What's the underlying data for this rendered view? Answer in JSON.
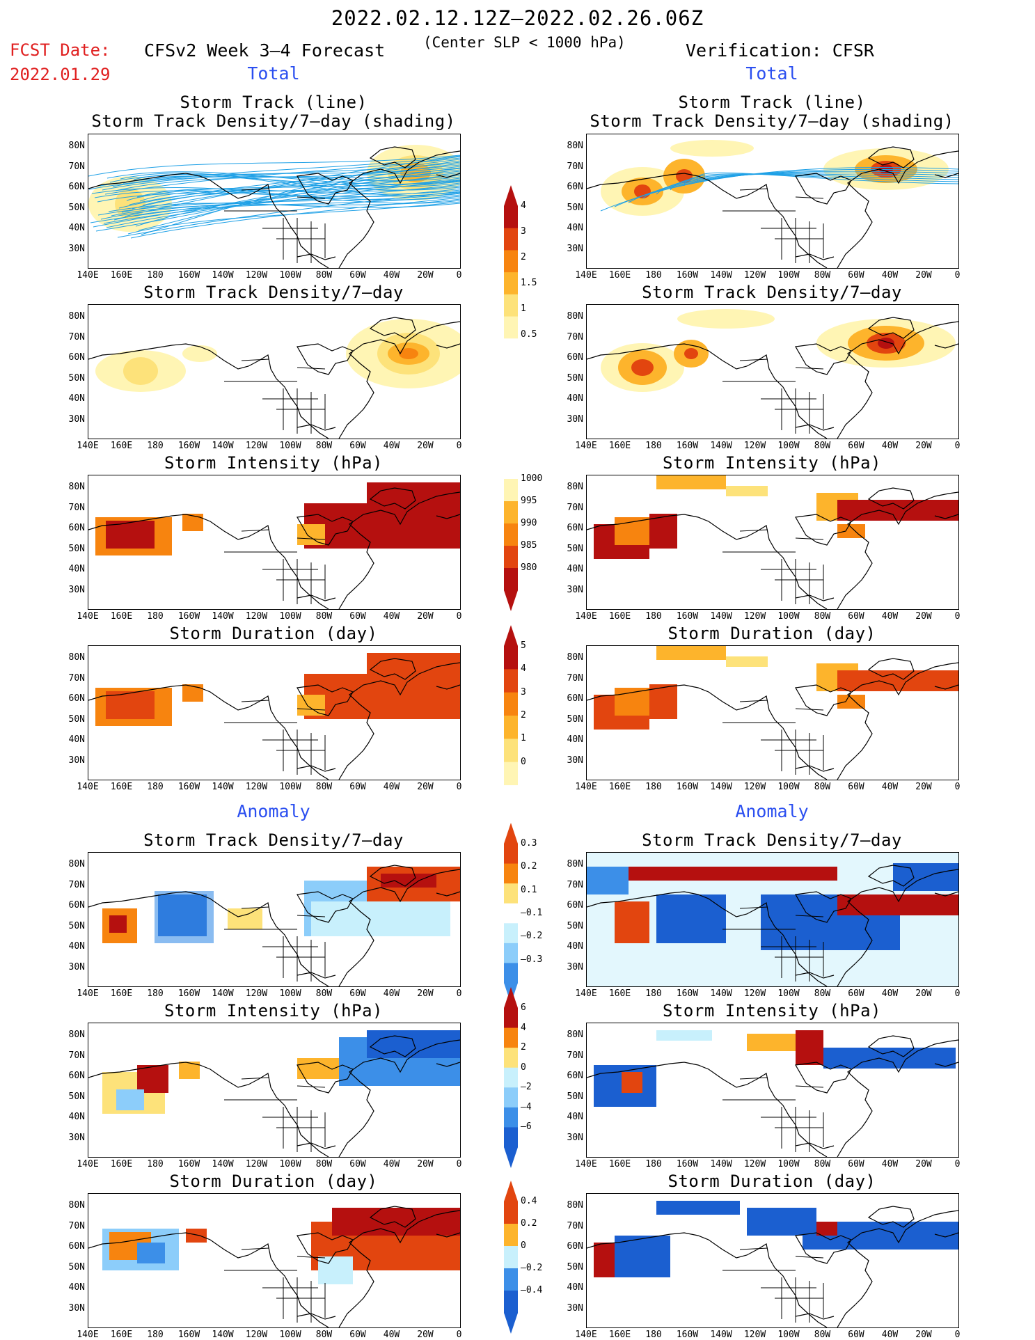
{
  "header": {
    "date_range": "2022.02.12.12Z–2022.02.26.06Z",
    "fcst_label": "FCST Date:",
    "fcst_date": "2022.01.29",
    "model": "CFSv2 Week 3–4 Forecast",
    "threshold": "(Center SLP < 1000 hPa)",
    "verification": "Verification: CFSR"
  },
  "sections": {
    "total": "Total",
    "anomaly": "Anomaly"
  },
  "panel_titles": {
    "track_line": "Storm Track (line)",
    "track_shading": "Storm Track Density/7–day (shading)",
    "density": "Storm Track Density/7–day",
    "intensity": "Storm Intensity (hPa)",
    "duration": "Storm Duration (day)"
  },
  "axes": {
    "lat_labels": [
      "80N",
      "70N",
      "60N",
      "50N",
      "40N",
      "30N"
    ],
    "lon_labels": [
      "140E",
      "160E",
      "180",
      "160W",
      "140W",
      "120W",
      "100W",
      "80W",
      "60W",
      "40W",
      "20W",
      "0"
    ]
  },
  "colorbars": {
    "density_total": [
      "4",
      "3",
      "2",
      "1.5",
      "1",
      "0.5"
    ],
    "intensity_total": [
      "1000",
      "995",
      "990",
      "985",
      "980"
    ],
    "duration_total": [
      "5",
      "4",
      "3",
      "2",
      "1",
      "0"
    ],
    "density_anom": [
      "0.3",
      "0.2",
      "0.1",
      "–0.1",
      "–0.2",
      "–0.3"
    ],
    "intensity_anom": [
      "6",
      "4",
      "2",
      "0",
      "–2",
      "–4",
      "–6"
    ],
    "duration_anom": [
      "0.4",
      "0.2",
      "0",
      "–0.2",
      "–0.4"
    ]
  },
  "colors": {
    "fcst_red": "#e02020",
    "section_blue": "#2b4ff0",
    "track_line": "#1ea0e6",
    "warm": [
      "#fff5b4",
      "#fde27a",
      "#fdb42c",
      "#f7840f",
      "#e2450f",
      "#b5100f"
    ],
    "cool": [
      "#c8f0fc",
      "#8ccdfa",
      "#3c8fe8",
      "#1b5fd0"
    ]
  }
}
